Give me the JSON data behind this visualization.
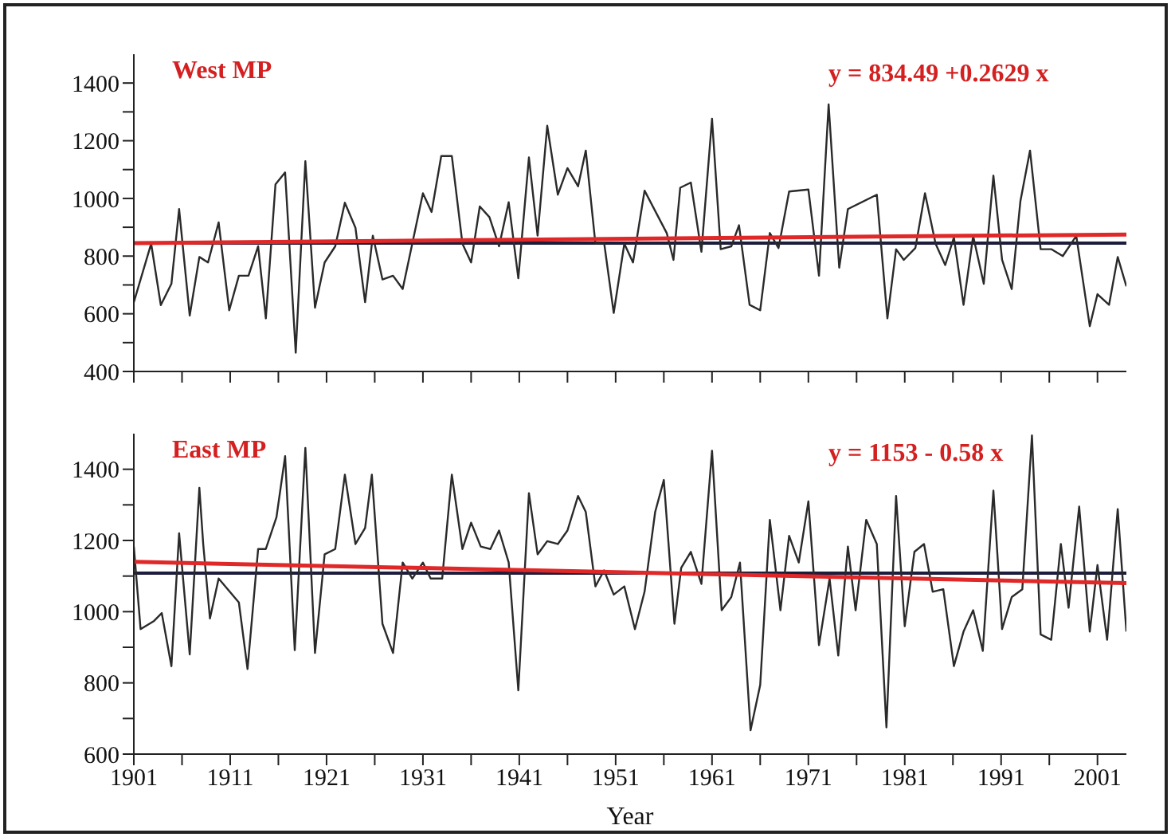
{
  "chart_data": [
    {
      "type": "line",
      "annotations": [
        "West MP",
        "y = 834.49 +0.2629 x"
      ],
      "xlim": [
        1901,
        2004
      ],
      "ylim": [
        400,
        1500
      ],
      "tick_labels": "y",
      "grid": false,
      "marker": "none",
      "xticks": [
        1901,
        {
          "value": 1906,
          "label": null
        },
        1911,
        {
          "value": 1916,
          "label": null
        },
        1921,
        {
          "value": 1926,
          "label": null
        },
        1931,
        {
          "value": 1936,
          "label": null
        },
        1941,
        {
          "value": 1946,
          "label": null
        },
        1951,
        {
          "value": 1956,
          "label": null
        },
        1961,
        {
          "value": 1966,
          "label": null
        },
        1971,
        {
          "value": 1976,
          "label": null
        },
        1981,
        {
          "value": 1986,
          "label": null
        },
        1991,
        {
          "value": 1996,
          "label": null
        },
        2001
      ],
      "yticks": [
        400,
        {
          "value": 500,
          "label": null
        },
        600,
        {
          "value": 700,
          "label": null
        },
        800,
        {
          "value": 900,
          "label": null
        },
        1000,
        {
          "value": 1100,
          "label": null
        },
        1200,
        {
          "value": 1300,
          "label": null
        },
        1400
      ],
      "ref_lines": [
        {
          "axis": "y",
          "value": 845,
          "color": "#1c1c3c"
        }
      ],
      "series": [
        {
          "color": "#2a2a2a",
          "x": [
            1901,
            1902.8,
            1903.8,
            1904.9,
            1905.7,
            1906.8,
            1907.8,
            1908.7,
            1909.8,
            1910.9,
            1911.9,
            1912.9,
            1913.9,
            1914.7,
            1915.7,
            1916.7,
            1917.8,
            1918.8,
            1919.8,
            1920.8,
            1921.9,
            1922.9,
            1924,
            1925,
            1925.8,
            1926.8,
            1927.9,
            1928.9,
            1931,
            1931.9,
            1932.9,
            1934,
            1935.1,
            1936,
            1936.9,
            1937.9,
            1938.9,
            1939.9,
            1940.9,
            1942,
            1942.9,
            1943.9,
            1945,
            1946,
            1947.1,
            1947.9,
            1948.9,
            1949.8,
            1950.8,
            1951.9,
            1952.8,
            1954,
            1956.3,
            1957,
            1957.7,
            1958.8,
            1959.9,
            1961,
            1961.9,
            1963,
            1963.8,
            1964.9,
            1966,
            1967,
            1967.9,
            1969,
            1971,
            1972.1,
            1973.1,
            1974.2,
            1975.1,
            1978.1,
            1979.2,
            1980.1,
            1980.9,
            1982.1,
            1983.1,
            1984.2,
            1985.2,
            1986.1,
            1987.1,
            1988.1,
            1989.2,
            1990.2,
            1991.1,
            1992.1,
            1993,
            1994,
            1995.1,
            1996.2,
            1997.4,
            1998.8,
            2000.2,
            2001,
            2002.2,
            2003.1,
            2004
          ],
          "values": [
            640,
            843,
            630,
            704,
            963,
            594,
            797,
            778,
            917,
            612,
            732,
            732,
            834,
            584,
            1049,
            1090,
            465,
            1129,
            621,
            778,
            834,
            985,
            898,
            640,
            871,
            719,
            732,
            686,
            1018,
            953,
            1147,
            1147,
            843,
            778,
            972,
            935,
            834,
            987,
            723,
            1142,
            871,
            1252,
            1013,
            1105,
            1042,
            1166,
            843,
            847,
            603,
            843,
            778,
            1027,
            880,
            787,
            1037,
            1055,
            815,
            1276,
            824,
            834,
            907,
            631,
            612,
            880,
            828,
            1024,
            1031,
            732,
            1326,
            760,
            963,
            1013,
            584,
            824,
            787,
            828,
            1018,
            843,
            769,
            865,
            631,
            870,
            704,
            1079,
            787,
            686,
            990,
            1166,
            824,
            824,
            800,
            870,
            557,
            668,
            631,
            797,
            695
          ]
        },
        {
          "color": "#e02828",
          "x": [
            1901,
            2004
          ],
          "values": [
            845,
            875
          ]
        }
      ]
    },
    {
      "type": "line",
      "annotations": [
        "East MP",
        "y = 1153 - 0.58 x"
      ],
      "xlabel": "Year",
      "xlim": [
        1901,
        2004
      ],
      "ylim": [
        600,
        1500
      ],
      "grid": false,
      "marker": "none",
      "xticks": [
        1901,
        {
          "value": 1906,
          "label": null
        },
        1911,
        {
          "value": 1916,
          "label": null
        },
        1921,
        {
          "value": 1926,
          "label": null
        },
        1931,
        {
          "value": 1936,
          "label": null
        },
        1941,
        {
          "value": 1946,
          "label": null
        },
        1951,
        {
          "value": 1956,
          "label": null
        },
        1961,
        {
          "value": 1966,
          "label": null
        },
        1971,
        {
          "value": 1976,
          "label": null
        },
        1981,
        {
          "value": 1986,
          "label": null
        },
        1991,
        {
          "value": 1996,
          "label": null
        },
        2001
      ],
      "yticks": [
        600,
        {
          "value": 700,
          "label": null
        },
        800,
        {
          "value": 900,
          "label": null
        },
        1000,
        {
          "value": 1100,
          "label": null
        },
        1200,
        {
          "value": 1300,
          "label": null
        },
        1400
      ],
      "ref_lines": [
        {
          "axis": "y",
          "value": 1108,
          "color": "#1c1c3c"
        }
      ],
      "series": [
        {
          "color": "#2a2a2a",
          "x": [
            1901,
            1901.7,
            1903.1,
            1903.9,
            1904.9,
            1905.7,
            1906.8,
            1907.8,
            1908.2,
            1908.9,
            1909.8,
            1911.9,
            1912.8,
            1913.9,
            1914.7,
            1915.8,
            1916.7,
            1917.7,
            1918.8,
            1919.8,
            1920.8,
            1921.9,
            1922.9,
            1924,
            1925,
            1925.7,
            1926.8,
            1927.9,
            1928.9,
            1929.9,
            1931,
            1931.8,
            1933,
            1934,
            1935.1,
            1936,
            1937,
            1938,
            1938.9,
            1939.9,
            1940.9,
            1942,
            1942.9,
            1943.9,
            1945,
            1946,
            1947.1,
            1947.9,
            1948.9,
            1949.8,
            1950.8,
            1951.9,
            1953,
            1954,
            1955.1,
            1956,
            1957.1,
            1957.8,
            1958.8,
            1959.9,
            1961,
            1962,
            1963,
            1963.9,
            1965,
            1966,
            1967,
            1968.1,
            1969,
            1970,
            1971,
            1972.1,
            1973.2,
            1974.1,
            1975.1,
            1975.9,
            1977,
            1978.1,
            1979.1,
            1980.1,
            1981,
            1982,
            1983,
            1983.9,
            1985,
            1986.1,
            1987.1,
            1988.1,
            1989.1,
            1990.2,
            1991.1,
            1992.1,
            1993.2,
            1994.2,
            1995.1,
            1996.2,
            1997.2,
            1998,
            1999.1,
            2000.2,
            2001,
            2002,
            2003.1,
            2004
          ],
          "values": [
            1183,
            951,
            974,
            996,
            847,
            1220,
            880,
            1348,
            1190,
            981,
            1093,
            1026,
            839,
            1176,
            1176,
            1265,
            1437,
            892,
            1460,
            884,
            1161,
            1176,
            1385,
            1190,
            1235,
            1385,
            966,
            884,
            1138,
            1093,
            1138,
            1093,
            1093,
            1385,
            1176,
            1250,
            1183,
            1176,
            1228,
            1138,
            779,
            1333,
            1161,
            1198,
            1190,
            1228,
            1325,
            1280,
            1071,
            1116,
            1048,
            1071,
            951,
            1056,
            1280,
            1370,
            966,
            1123,
            1168,
            1078,
            1452,
            1004,
            1041,
            1138,
            667,
            794,
            1258,
            1004,
            1213,
            1138,
            1310,
            906,
            1093,
            877,
            1183,
            1004,
            1258,
            1190,
            675,
            1325,
            959,
            1168,
            1190,
            1056,
            1063,
            847,
            944,
            1004,
            890,
            1340,
            951,
            1041,
            1063,
            1495,
            936,
            921,
            1190,
            1011,
            1295,
            944,
            1131,
            921,
            1288,
            944
          ]
        },
        {
          "color": "#e02828",
          "x": [
            1901,
            2004
          ],
          "values": [
            1140,
            1080
          ]
        }
      ]
    }
  ]
}
